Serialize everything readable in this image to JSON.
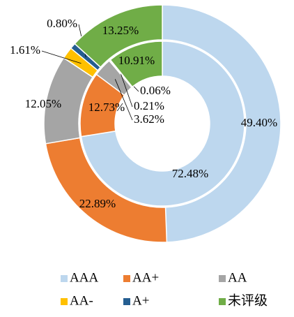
{
  "chart_data": {
    "type": "donut",
    "categories": [
      "AAA",
      "AA+",
      "AA",
      "AA-",
      "A+",
      "未评级"
    ],
    "colors": [
      "#bdd7ee",
      "#ed7d31",
      "#a5a5a5",
      "#ffc000",
      "#255e91",
      "#70ad47"
    ],
    "rings": [
      {
        "values": [
          49.4,
          22.89,
          12.05,
          1.61,
          0.8,
          13.25
        ],
        "value_labels": [
          "49.40%",
          "22.89%",
          "12.05%",
          "1.61%",
          "0.80%",
          "13.25%"
        ]
      },
      {
        "values": [
          72.48,
          12.73,
          3.62,
          0.21,
          0.06,
          10.91
        ],
        "value_labels": [
          "72.48%",
          "12.73%",
          "3.62%",
          "0.21%",
          "0.06%",
          "10.91%"
        ]
      }
    ],
    "legend": "bottom"
  }
}
